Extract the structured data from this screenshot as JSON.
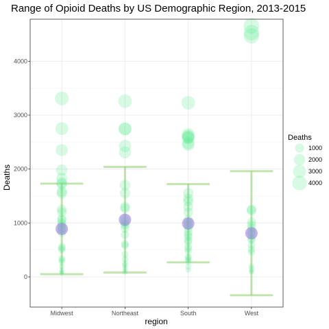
{
  "chart_data": {
    "type": "scatter",
    "title": "Range of Opioid Deaths by US Demographic Region, 2013-2015",
    "xlabel": "region",
    "ylabel": "Deaths",
    "categories": [
      "Midwest",
      "Northeast",
      "South",
      "West"
    ],
    "ylim": [
      -560,
      4780
    ],
    "yticks": [
      0,
      1000,
      2000,
      3000,
      4000
    ],
    "grid": true,
    "colors": {
      "points": "#4de88a",
      "mean": "#9b7fe0",
      "errorbar": "#8fcf70",
      "gridline": "#ebebeb",
      "panel_border": "#333333"
    },
    "series": [
      {
        "category": "Midwest",
        "points": [
          3310,
          2750,
          2350,
          1980,
          1830,
          1750,
          1720,
          1580,
          1550,
          1250,
          1200,
          1080,
          1050,
          1000,
          960,
          900,
          880,
          820,
          560,
          530,
          500,
          340,
          310,
          280,
          190,
          120,
          90,
          60
        ],
        "mean": 890,
        "error_low": 50,
        "error_high": 1730
      },
      {
        "category": "Northeast",
        "points": [
          3260,
          2750,
          2740,
          2430,
          2310,
          1700,
          1550,
          1300,
          1270,
          1060,
          1000,
          960,
          900,
          780,
          610,
          580,
          420,
          330,
          250,
          210,
          160,
          110,
          80
        ],
        "mean": 1060,
        "error_low": 80,
        "error_high": 2040
      },
      {
        "category": "South",
        "points": [
          3230,
          2640,
          2610,
          2590,
          2580,
          2480,
          2450,
          1550,
          1450,
          1400,
          1300,
          1200,
          1060,
          1000,
          960,
          900,
          830,
          780,
          740,
          680,
          650,
          560,
          520,
          470,
          370,
          350,
          310,
          280,
          190,
          130
        ],
        "mean": 990,
        "error_low": 270,
        "error_high": 1720
      },
      {
        "category": "West",
        "points": [
          4660,
          4530,
          4470,
          1250,
          1230,
          1020,
          960,
          900,
          830,
          800,
          720,
          690,
          590,
          510,
          460,
          200,
          150,
          110,
          90
        ],
        "mean": 810,
        "error_low": -340,
        "error_high": 1960
      }
    ],
    "legend": {
      "title": "Deaths",
      "position": "right",
      "entries": [
        {
          "label": "1000",
          "value": 1000
        },
        {
          "label": "2000",
          "value": 2000
        },
        {
          "label": "3000",
          "value": 3000
        },
        {
          "label": "4000",
          "value": 4000
        }
      ]
    }
  }
}
